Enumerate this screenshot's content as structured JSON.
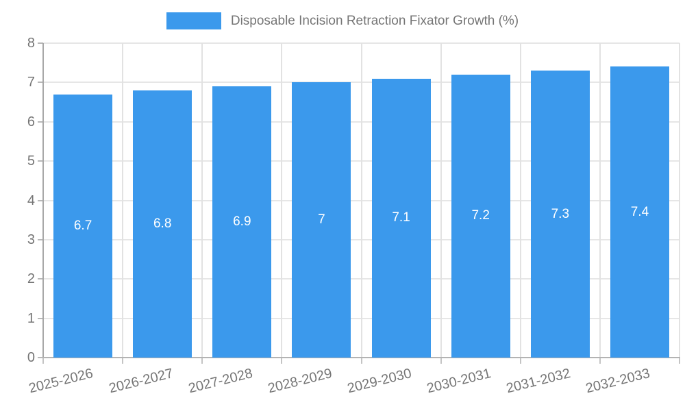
{
  "chart_data": {
    "type": "bar",
    "title": "Disposable Incision Retraction Fixator Growth (%)",
    "categories": [
      "2025-2026",
      "2026-2027",
      "2027-2028",
      "2028-2029",
      "2029-2030",
      "2030-2031",
      "2031-2032",
      "2032-2033"
    ],
    "values": [
      6.7,
      6.8,
      6.9,
      7,
      7.1,
      7.2,
      7.3,
      7.4
    ],
    "value_labels": [
      "6.7",
      "6.8",
      "6.9",
      "7",
      "7.1",
      "7.2",
      "7.3",
      "7.4"
    ],
    "xlabel": "",
    "ylabel": "",
    "ylim": [
      0,
      8
    ],
    "yticks": [
      0,
      1,
      2,
      3,
      4,
      5,
      6,
      7,
      8
    ],
    "grid": true,
    "legend_position": "top",
    "bar_color": "#3b99ec",
    "value_label_color": "#ffffff",
    "axis_text_color": "#757575"
  }
}
